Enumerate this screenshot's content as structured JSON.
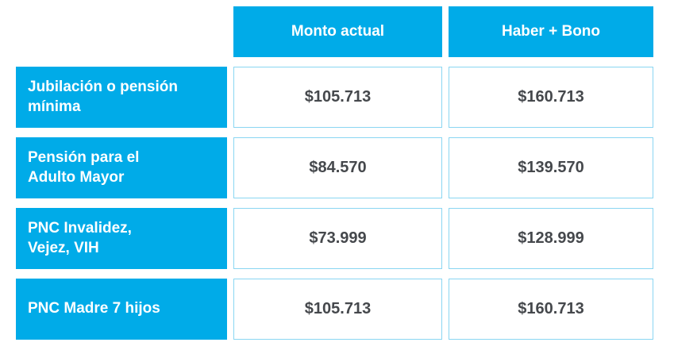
{
  "colors": {
    "accent": "#00ABE8",
    "cell_border": "#8AD6F2",
    "value_text": "#45484C"
  },
  "chart_data": {
    "type": "table",
    "columns": [
      "",
      "Monto actual",
      "Haber + Bono"
    ],
    "rows": [
      [
        "Jubilación o pensión\nmínima",
        "$105.713",
        "$160.713"
      ],
      [
        "Pensión para el\nAdulto Mayor",
        "$84.570",
        "$139.570"
      ],
      [
        "PNC Invalidez,\nVejez, VIH",
        "$73.999",
        "$128.999"
      ],
      [
        "PNC Madre 7 hijos",
        "$105.713",
        "$160.713"
      ]
    ]
  }
}
